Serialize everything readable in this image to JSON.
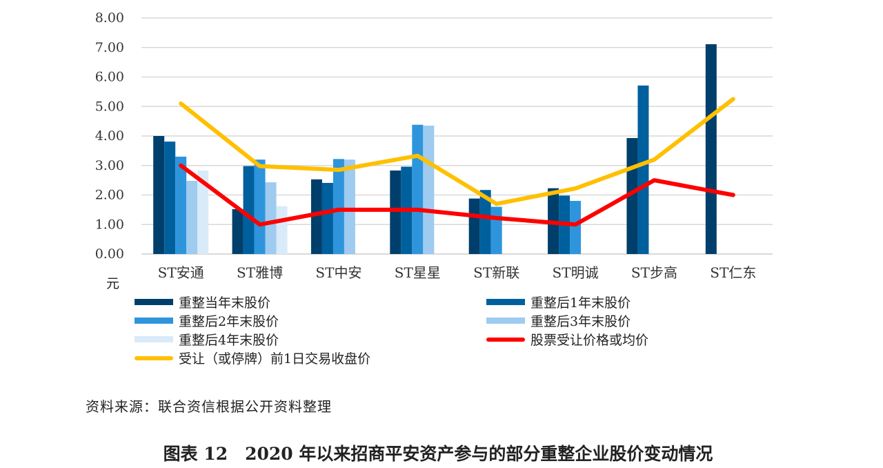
{
  "chart_data": {
    "type": "bar",
    "categories": [
      "ST安通",
      "ST雅博",
      "ST中安",
      "ST星星",
      "ST新联",
      "ST明诚",
      "ST步高",
      "ST仁东"
    ],
    "ylim": [
      0,
      8
    ],
    "yticks": [
      "0.00",
      "1.00",
      "2.00",
      "3.00",
      "4.00",
      "5.00",
      "6.00",
      "7.00",
      "8.00"
    ],
    "ylabel": "元",
    "grid": true,
    "legend_position": "bottom",
    "series": [
      {
        "name": "重整当年末股价",
        "kind": "bar",
        "color": "#003f6b",
        "values": [
          4.0,
          1.52,
          2.53,
          2.83,
          1.88,
          2.23,
          3.93,
          7.11
        ]
      },
      {
        "name": "重整后1年末股价",
        "kind": "bar",
        "color": "#00609e",
        "values": [
          3.81,
          2.98,
          2.41,
          2.96,
          2.17,
          1.98,
          5.71,
          null
        ]
      },
      {
        "name": "重整后2年末股价",
        "kind": "bar",
        "color": "#2e95dc",
        "values": [
          3.3,
          3.2,
          3.22,
          4.38,
          1.6,
          1.8,
          null,
          null
        ]
      },
      {
        "name": "重整后3年末股价",
        "kind": "bar",
        "color": "#9ecbef",
        "values": [
          2.48,
          2.43,
          3.2,
          4.35,
          null,
          null,
          null,
          null
        ]
      },
      {
        "name": "重整后4年末股价",
        "kind": "bar",
        "color": "#d9eaf8",
        "values": [
          2.83,
          1.62,
          null,
          null,
          null,
          null,
          null,
          null
        ]
      },
      {
        "name": "股票受让价格或均价",
        "kind": "line",
        "color": "#ff0000",
        "values": [
          3.0,
          1.0,
          1.5,
          1.5,
          1.22,
          1.0,
          2.5,
          2.0
        ]
      },
      {
        "name": "受让（或停牌）前1日交易收盘价",
        "kind": "line",
        "color": "#ffc000",
        "values": [
          5.1,
          2.98,
          2.85,
          3.33,
          1.7,
          2.22,
          3.2,
          5.25
        ]
      }
    ]
  },
  "source": "资料来源：联合资信根据公开资料整理",
  "caption": "图表 12　2020 年以来招商平安资产参与的部分重整企业股价变动情况"
}
